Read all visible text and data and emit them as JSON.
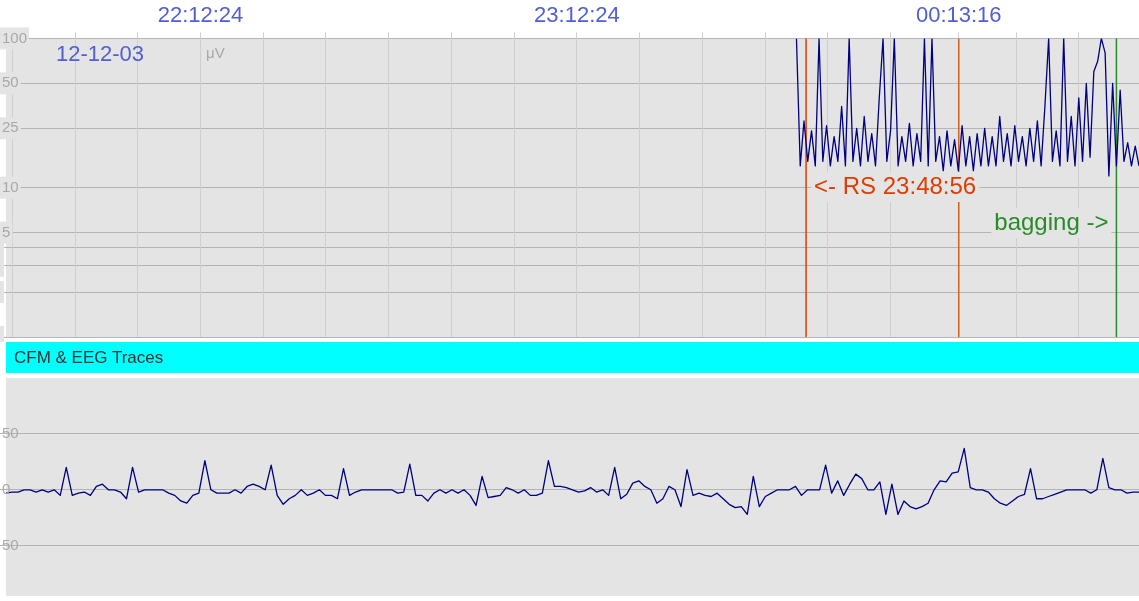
{
  "chart_data": [
    {
      "type": "line",
      "ylabel": "μV",
      "annotations": [
        "12-12-03"
      ],
      "x": [
        "--12-03T23:47:24",
        "--12-03T23:48:00",
        "--12-03T23:48:36",
        "--12-03T23:49:12",
        "--12-03T23:49:48",
        "--12-03T23:50:24",
        "--12-03T23:51:00",
        "--12-03T23:51:36",
        "--12-03T23:52:12",
        "--12-03T23:52:48",
        "--12-03T23:53:24",
        "--12-03T23:54:00",
        "--12-03T23:54:36",
        "--12-03T23:55:12",
        "--12-03T23:55:48",
        "--12-03T23:56:24",
        "--12-03T23:57:00",
        "--12-03T23:57:36",
        "--12-03T23:58:12",
        "--12-03T23:58:48",
        "--12-03T23:59:24",
        "--12-04T00:00:00",
        "--12-04T00:00:36",
        "--12-04T00:01:12",
        "--12-04T00:01:48",
        "--12-04T00:02:24",
        "--12-04T00:03:00",
        "--12-04T00:03:36",
        "--12-04T00:04:12",
        "--12-04T00:04:48",
        "--12-04T00:05:24",
        "--12-04T00:06:00",
        "--12-04T00:06:36",
        "--12-04T00:07:12",
        "--12-04T00:07:48",
        "--12-04T00:08:24",
        "--12-04T00:09:00",
        "--12-04T00:09:36",
        "--12-04T00:10:12",
        "--12-04T00:10:48",
        "--12-04T00:11:24",
        "--12-04T00:12:00",
        "--12-04T00:12:36",
        "--12-04T00:13:12",
        "--12-04T00:13:48",
        "--12-04T00:14:24",
        "--12-04T00:15:00",
        "--12-04T00:15:36",
        "--12-04T00:16:12",
        "--12-04T00:16:48",
        "--12-04T00:17:24",
        "--12-04T00:18:00",
        "--12-04T00:18:36",
        "--12-04T00:19:12",
        "--12-04T00:19:48",
        "--12-04T00:20:24",
        "--12-04T00:21:00",
        "--12-04T00:21:36",
        "--12-04T00:22:12",
        "--12-04T00:22:48",
        "--12-04T00:23:24",
        "--12-04T00:24:00",
        "--12-04T00:24:36",
        "--12-04T00:25:12",
        "--12-04T00:25:48",
        "--12-04T00:26:24",
        "--12-04T00:27:00",
        "--12-04T00:27:36",
        "--12-04T00:28:12",
        "--12-04T00:28:48",
        "--12-04T00:29:24",
        "--12-04T00:30:00",
        "--12-04T00:30:36",
        "--12-04T00:31:12",
        "--12-04T00:31:48",
        "--12-04T00:32:24",
        "--12-04T00:33:00",
        "--12-04T00:33:36",
        "--12-04T00:34:12",
        "--12-04T00:34:48",
        "--12-04T00:35:24",
        "--12-04T00:36:00",
        "--12-04T00:36:36",
        "--12-04T00:37:12",
        "--12-04T00:37:48",
        "--12-04T00:38:24",
        "--12-04T00:39:00",
        "--12-04T00:39:36",
        "--12-04T00:40:12",
        "--12-04T00:40:48",
        "--12-04T00:41:24",
        "--12-04T00:42:00"
      ],
      "series": [
        {
          "color": "#000080",
          "values": [
            100,
            14,
            28,
            15,
            24,
            14,
            100,
            15,
            26,
            14,
            22,
            15,
            35,
            14,
            100,
            15,
            25,
            14,
            30,
            15,
            23,
            14,
            40,
            100,
            15,
            24,
            100,
            14,
            22,
            15,
            27,
            14,
            23,
            15,
            100,
            14,
            100,
            15,
            22,
            13,
            24,
            14,
            21,
            13,
            26,
            14,
            22,
            13,
            23,
            14,
            25,
            14,
            22,
            14,
            30,
            15,
            23,
            14,
            26,
            15,
            22,
            14,
            25,
            15,
            28,
            14,
            35,
            100,
            15,
            24,
            14,
            100,
            15,
            30,
            14,
            40,
            15,
            50,
            16,
            60,
            70,
            100,
            80,
            12,
            50,
            14,
            45,
            15,
            20,
            14,
            19,
            14
          ]
        }
      ],
      "xlim": [
        "--12-03T21:41:24",
        "--12-04T00:42:00"
      ],
      "xticks": [
        {
          "value": "--12-03T21:42:24",
          "label": null
        },
        {
          "value": "--12-03T21:52:24",
          "label": null
        },
        {
          "value": "--12-03T22:02:24",
          "label": null
        },
        {
          "value": "--12-03T22:12:24",
          "label": "22:12:24"
        },
        {
          "value": "--12-03T22:22:24",
          "label": null
        },
        {
          "value": "--12-03T22:32:24",
          "label": null
        },
        {
          "value": "--12-03T22:42:24",
          "label": null
        },
        {
          "value": "--12-03T22:52:24",
          "label": null
        },
        {
          "value": "--12-03T23:02:24",
          "label": null
        },
        {
          "value": "--12-03T23:12:24",
          "label": "23:12:24"
        },
        {
          "value": "--12-03T23:22:24",
          "label": null
        },
        {
          "value": "--12-03T23:32:24",
          "label": null
        },
        {
          "value": "--12-03T23:42:24",
          "label": null
        },
        {
          "value": "--12-03T23:52:24",
          "label": null
        },
        {
          "value": "--12-04T00:02:24",
          "label": null
        },
        {
          "value": "--12-04T00:13:16",
          "label": "00:13:16"
        },
        {
          "value": "--12-04T00:22:24",
          "label": null
        },
        {
          "value": "--12-04T00:32:24",
          "label": null
        }
      ],
      "ylim": [
        1,
        100
      ],
      "yticks": [
        {
          "value": 1,
          "label": null
        },
        {
          "value": 2,
          "label": null
        },
        {
          "value": 3,
          "label": null
        },
        {
          "value": 4,
          "label": null
        },
        5,
        10,
        25,
        50,
        100
      ],
      "log": true,
      "grid": true,
      "legend": false,
      "marker": "none",
      "ref_lines": [
        {
          "axis": "x",
          "value": "--12-03T23:48:56",
          "label": "<- RS 23:48:56",
          "color": "#e03c00"
        },
        {
          "axis": "x",
          "value": "--12-04T00:13:16",
          "color": "#d06020"
        },
        {
          "axis": "x",
          "value": "--12-04T00:38:24",
          "label": "bagging ->",
          "color": "#2a8a2a"
        }
      ]
    },
    {
      "type": "line",
      "title": "CFM & EEG Traces",
      "categories": [
        null,
        null,
        null,
        null,
        null,
        null,
        null,
        null,
        null,
        null,
        null,
        null,
        null,
        null,
        null,
        null,
        null,
        null,
        null,
        null,
        null,
        null,
        null,
        null,
        null,
        null,
        null,
        null,
        null,
        null,
        null,
        null,
        null,
        null,
        null,
        null,
        null,
        null,
        null,
        null,
        null,
        null,
        null,
        null,
        null,
        null,
        null,
        null,
        null,
        null,
        null,
        null,
        null,
        null,
        null,
        null,
        null,
        null,
        null,
        null,
        null,
        null,
        null,
        null,
        null,
        null,
        null,
        null,
        null,
        null,
        null,
        null,
        null,
        null,
        null,
        null,
        null,
        null,
        null,
        null,
        null,
        null,
        null,
        null,
        null,
        null,
        null,
        null,
        null,
        null,
        null,
        null,
        null,
        null,
        null,
        null,
        null,
        null,
        null,
        null,
        null,
        null,
        null,
        null,
        null,
        null,
        null,
        null,
        null,
        null,
        null,
        null,
        null,
        null,
        null,
        null,
        null,
        null,
        null,
        null,
        null,
        null,
        null,
        null,
        null,
        null,
        null,
        null,
        null,
        null,
        null,
        null,
        null,
        null,
        null,
        null,
        null,
        null,
        null,
        null,
        null,
        null,
        null,
        null,
        null,
        null,
        null,
        null,
        null,
        null,
        null,
        null,
        null,
        null,
        null,
        null,
        null,
        null,
        null,
        null,
        null,
        null,
        null,
        null,
        null,
        null,
        null,
        null,
        null,
        null,
        null,
        null,
        null,
        null,
        null,
        null,
        null,
        null,
        null,
        null,
        null,
        null,
        null,
        null,
        null,
        null,
        null,
        null,
        null
      ],
      "series": [
        {
          "color": "#000080",
          "values": [
            -3,
            -2,
            -2,
            0,
            0,
            -2,
            0,
            -2,
            0,
            -5,
            20,
            -5,
            -3,
            -2,
            -5,
            3,
            5,
            0,
            0,
            -2,
            -8,
            20,
            -2,
            0,
            0,
            0,
            0,
            -3,
            -5,
            -10,
            -12,
            -5,
            -3,
            26,
            0,
            -3,
            -3,
            -3,
            0,
            -3,
            3,
            5,
            3,
            0,
            22,
            -5,
            -13,
            -8,
            -5,
            0,
            -5,
            -3,
            0,
            -5,
            -5,
            -8,
            19,
            -5,
            -2,
            0,
            0,
            0,
            0,
            0,
            0,
            -3,
            -2,
            23,
            -5,
            -5,
            -10,
            -3,
            0,
            -3,
            0,
            -3,
            0,
            -5,
            -14,
            12,
            -7,
            -6,
            -5,
            2,
            0,
            -3,
            0,
            -5,
            -5,
            -3,
            26,
            3,
            3,
            2,
            0,
            -2,
            -1,
            2,
            -2,
            0,
            -5,
            20,
            -8,
            -4,
            6,
            8,
            3,
            0,
            -12,
            -8,
            3,
            0,
            -15,
            18,
            -5,
            -3,
            -5,
            -6,
            -3,
            -8,
            -13,
            -16,
            -15,
            -22,
            12,
            -15,
            -6,
            -3,
            0,
            0,
            0,
            3,
            -5,
            0,
            0,
            0,
            22,
            -3,
            8,
            -5,
            5,
            14,
            10,
            0,
            0,
            7,
            -22,
            5,
            -22,
            -10,
            -15,
            -17,
            -15,
            -12,
            0,
            8,
            7,
            15,
            16,
            37,
            2,
            0,
            0,
            -2,
            -8,
            -12,
            -14,
            -10,
            -6,
            -4,
            19,
            -8,
            -8,
            -6,
            -4,
            -2,
            0,
            0,
            0,
            0,
            -3,
            0,
            28,
            2,
            0,
            0,
            -3,
            -2,
            -2
          ]
        }
      ],
      "ylim": [
        -95,
        100
      ],
      "yticks": [
        {
          "value": -50,
          "label": "50"
        },
        0,
        50
      ],
      "grid": "y",
      "legend": false,
      "marker": "none",
      "tick_labels": "y"
    }
  ]
}
